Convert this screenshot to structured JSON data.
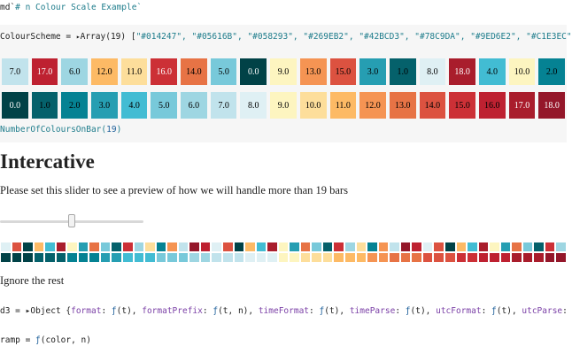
{
  "colours": [
    "#014247",
    "#05616B",
    "#058293",
    "#269EB2",
    "#42BCD3",
    "#78C9DA",
    "#9ED6E2",
    "#C1E3EC",
    "#DFF0F4",
    "#FDF5C0",
    "#FDDE9B",
    "#FDBA65",
    "#F59453",
    "#E77345",
    "#DC5240",
    "#CC3036",
    "#BE2131",
    "#A91D2C",
    "#94172A"
  ],
  "md_line": {
    "prefix": "md`",
    "text": "# n Colour Scale Example`"
  },
  "colour_scheme": {
    "name": "ColourScheme",
    "equals": " = ",
    "toggle": "▸",
    "array_label": "Array(19)",
    "open_bracket": " [",
    "items": [
      "\"#014247\",",
      "\"#05616B\",",
      "\"#058293\",",
      "\"#269EB2\",",
      "\"#42BCD3\",",
      "\"#78C9DA\",",
      "\"#9ED6E2\",",
      "\"#C1E3EC\""
    ]
  },
  "row1": {
    "labels": [
      "7.0",
      "17.0",
      "6.0",
      "12.0",
      "11.0",
      "16.0",
      "14.0",
      "5.0",
      "0.0",
      "9.0",
      "13.0",
      "15.0",
      "3.0",
      "1.0",
      "8.0",
      "18.0",
      "4.0",
      "10.0",
      "2.0"
    ],
    "bg": [
      "#C1E3EC",
      "#BE2131",
      "#9ED6E2",
      "#FDBA65",
      "#FDDE9B",
      "#CC3036",
      "#E77345",
      "#78C9DA",
      "#014247",
      "#FDF5C0",
      "#F59453",
      "#DC5240",
      "#269EB2",
      "#05616B",
      "#DFF0F4",
      "#A91D2C",
      "#42BCD3",
      "#FDF5C0",
      "#058293"
    ],
    "fg": [
      "#000000",
      "#ffffff",
      "#000000",
      "#000000",
      "#000000",
      "#ffffff",
      "#000000",
      "#000000",
      "#ffffff",
      "#000000",
      "#000000",
      "#000000",
      "#000000",
      "#000000",
      "#000000",
      "#ffffff",
      "#000000",
      "#000000",
      "#000000"
    ]
  },
  "row2": {
    "labels": [
      "0.0",
      "1.0",
      "2.0",
      "3.0",
      "4.0",
      "5.0",
      "6.0",
      "7.0",
      "8.0",
      "9.0",
      "10.0",
      "11.0",
      "12.0",
      "13.0",
      "14.0",
      "15.0",
      "16.0",
      "17.0",
      "18.0"
    ],
    "bg": [
      "#014247",
      "#05616B",
      "#058293",
      "#269EB2",
      "#42BCD3",
      "#78C9DA",
      "#9ED6E2",
      "#C1E3EC",
      "#DFF0F4",
      "#FDF5C0",
      "#FDDE9B",
      "#FDBA65",
      "#F59453",
      "#E77345",
      "#DC5240",
      "#CC3036",
      "#BE2131",
      "#A91D2C",
      "#94172A"
    ],
    "fg": [
      "#ffffff",
      "#000000",
      "#000000",
      "#000000",
      "#000000",
      "#000000",
      "#000000",
      "#000000",
      "#000000",
      "#000000",
      "#000000",
      "#000000",
      "#000000",
      "#000000",
      "#000000",
      "#000000",
      "#000000",
      "#ffffff",
      "#ffffff"
    ]
  },
  "number_of_colours": {
    "fn": "NumberOfColoursOnBar",
    "open": "(",
    "value": "19",
    "close": ")"
  },
  "heading": "Intercative",
  "slider_prompt": "Please set this slider to see a preview of how we will handle more than 19 bars",
  "slider": {
    "value_fraction": 0.5
  },
  "mini_rows": {
    "count": 51,
    "top_pattern": [
      "#DFF0F4",
      "#DC5240",
      "#014247",
      "#FDBA65",
      "#42BCD3",
      "#A91D2C",
      "#FDF5C0",
      "#269EB2",
      "#E77345",
      "#78C9DA",
      "#05616B",
      "#CC3036",
      "#9ED6E2",
      "#FDDE9B",
      "#058293",
      "#F59453",
      "#C1E3EC",
      "#94172A",
      "#BE2131"
    ]
  },
  "ignore_text": "Ignore the rest",
  "d3_line": [
    {
      "t": "d3 = ",
      "c": "black"
    },
    {
      "t": "▸",
      "c": "black"
    },
    {
      "t": "Object {",
      "c": "black"
    },
    {
      "t": "format",
      "c": "purple"
    },
    {
      "t": ": ",
      "c": "black"
    },
    {
      "t": "ƒ",
      "c": "blue"
    },
    {
      "t": "(t), ",
      "c": "black"
    },
    {
      "t": "formatPrefix",
      "c": "purple"
    },
    {
      "t": ": ",
      "c": "black"
    },
    {
      "t": "ƒ",
      "c": "blue"
    },
    {
      "t": "(t, n), ",
      "c": "black"
    },
    {
      "t": "timeFormat",
      "c": "purple"
    },
    {
      "t": ": ",
      "c": "black"
    },
    {
      "t": "ƒ",
      "c": "blue"
    },
    {
      "t": "(t), ",
      "c": "black"
    },
    {
      "t": "timeParse",
      "c": "purple"
    },
    {
      "t": ": ",
      "c": "black"
    },
    {
      "t": "ƒ",
      "c": "blue"
    },
    {
      "t": "(t), ",
      "c": "black"
    },
    {
      "t": "utcFormat",
      "c": "purple"
    },
    {
      "t": ": ",
      "c": "black"
    },
    {
      "t": "ƒ",
      "c": "blue"
    },
    {
      "t": "(t), ",
      "c": "black"
    },
    {
      "t": "utcParse",
      "c": "purple"
    },
    {
      "t": ":",
      "c": "black"
    }
  ],
  "ramp_line": [
    {
      "t": "ramp = ",
      "c": "black"
    },
    {
      "t": "ƒ",
      "c": "blue"
    },
    {
      "t": "(color, n)",
      "c": "black"
    }
  ]
}
